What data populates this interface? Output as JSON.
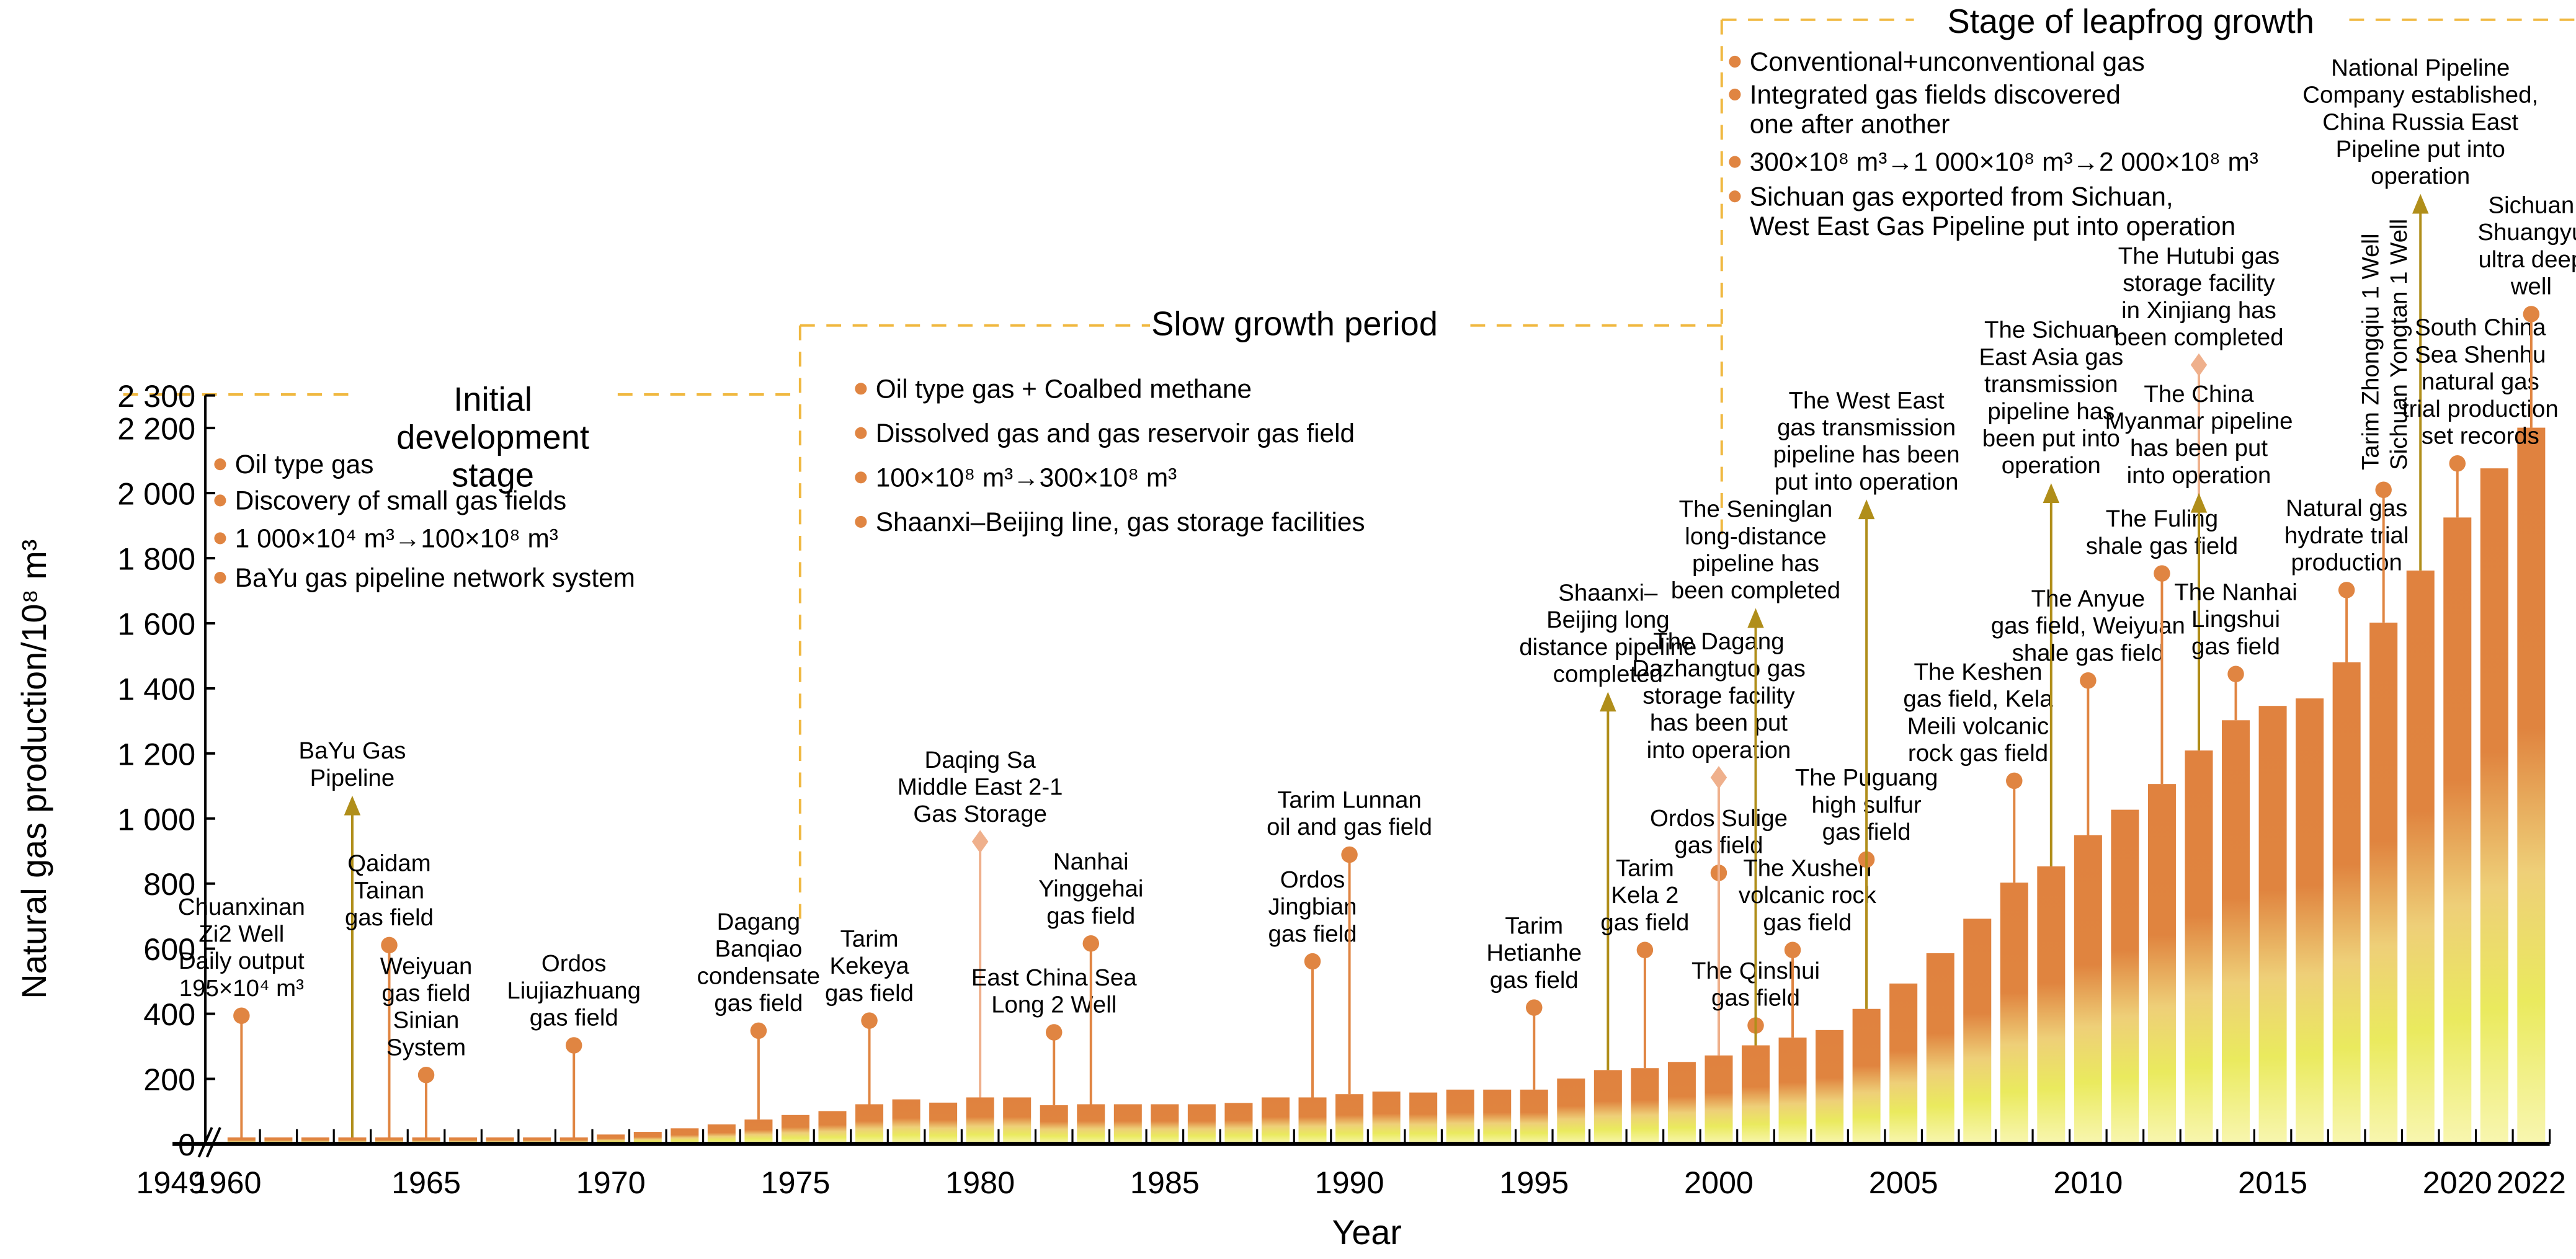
{
  "chart_data": {
    "type": "bar",
    "xlabel": "Year",
    "ylabel": "Natural gas production/10⁸ m³",
    "ylim": [
      0,
      2300
    ],
    "yticks": [
      0,
      200,
      400,
      600,
      800,
      1000,
      1200,
      1400,
      1600,
      1800,
      2000,
      2200,
      2300
    ],
    "ytick_labels": [
      "0",
      "200",
      "400",
      "600",
      "800",
      "1 000",
      "1 200",
      "1 400",
      "1 600",
      "1 800",
      "2 000",
      "2 200",
      "2 300"
    ],
    "xtick_labels": [
      "1949",
      "1960",
      "1965",
      "1970",
      "1975",
      "1980",
      "1985",
      "1990",
      "1995",
      "2000",
      "2005",
      "2010",
      "2015",
      "2020",
      "2022"
    ],
    "axis_break": "between 1949 and 1960",
    "grid": false,
    "colors": {
      "bar_top": "#e0823f",
      "bar_bottom": "#eaea5e",
      "dot": "#e08542",
      "diamond": "#efb08c",
      "arrow": "#b08e1a",
      "stage_line": "#f0b840"
    },
    "years": [
      1949,
      1960,
      1961,
      1962,
      1963,
      1964,
      1965,
      1966,
      1967,
      1968,
      1969,
      1970,
      1971,
      1972,
      1973,
      1974,
      1975,
      1976,
      1977,
      1978,
      1979,
      1980,
      1981,
      1982,
      1983,
      1984,
      1985,
      1986,
      1987,
      1988,
      1989,
      1990,
      1991,
      1992,
      1993,
      1994,
      1995,
      1996,
      1997,
      1998,
      1999,
      2000,
      2001,
      2002,
      2003,
      2004,
      2005,
      2006,
      2007,
      2008,
      2009,
      2010,
      2011,
      2012,
      2013,
      2014,
      2015,
      2016,
      2017,
      2018,
      2019,
      2020,
      2021,
      2022
    ],
    "values": [
      0.1,
      20,
      20,
      20,
      20,
      20,
      20,
      20,
      20,
      20,
      20,
      29,
      37,
      48,
      60,
      75,
      89,
      101,
      122,
      137,
      127,
      143,
      143,
      119,
      122,
      122,
      122,
      122,
      126,
      143,
      143,
      153,
      161,
      158,
      167,
      167,
      167,
      201,
      227,
      233,
      252,
      272,
      303,
      327,
      350,
      415,
      493,
      586,
      692,
      803,
      853,
      949,
      1027,
      1106,
      1209,
      1302,
      1346,
      1369,
      1480,
      1602,
      1762,
      1925,
      2076,
      2201
    ],
    "annotations": [
      {
        "year": 1960,
        "marker": "dot",
        "value": 394,
        "label": [
          "Chuanxinan",
          "Zi2 Well",
          "Daily output",
          "195×10⁴ m³"
        ]
      },
      {
        "year": 1963,
        "marker": "arrow",
        "value": 1040,
        "label": [
          "BaYu Gas",
          "Pipeline"
        ]
      },
      {
        "year": 1964,
        "marker": "dot",
        "value": 611,
        "label": [
          "Qaidam",
          "Tainan",
          "gas field"
        ]
      },
      {
        "year": 1965,
        "marker": "dot",
        "value": 212,
        "label": [
          "Weiyuan",
          "gas field",
          "Sinian",
          "System"
        ]
      },
      {
        "year": 1969,
        "marker": "dot",
        "value": 303,
        "label": [
          "Ordos",
          "Liujiazhuang",
          "gas field"
        ]
      },
      {
        "year": 1974,
        "marker": "dot",
        "value": 348,
        "label": [
          "Dagang",
          "Banqiao",
          "condensate",
          "gas field"
        ]
      },
      {
        "year": 1977,
        "marker": "dot",
        "value": 379,
        "label": [
          "Tarim",
          "Kekeya",
          "gas field"
        ]
      },
      {
        "year": 1980,
        "marker": "diamond",
        "value": 929,
        "label": [
          "Daqing Sa",
          "Middle East 2-1",
          "Gas Storage"
        ]
      },
      {
        "year": 1982,
        "marker": "dot",
        "value": 343,
        "label": [
          "East China Sea",
          "Long 2 Well"
        ]
      },
      {
        "year": 1983,
        "marker": "dot",
        "value": 616,
        "label": [
          "Nanhai",
          "Yinggehai",
          "gas field"
        ]
      },
      {
        "year": 1989,
        "marker": "dot",
        "value": 561,
        "label": [
          "Ordos",
          "Jingbian",
          "gas field"
        ]
      },
      {
        "year": 1990,
        "marker": "dot",
        "value": 889,
        "label": [
          "Tarim Lunnan",
          "oil and gas field"
        ]
      },
      {
        "year": 1995,
        "marker": "dot",
        "value": 419,
        "label": [
          "Tarim",
          "Hetianhe",
          "gas field"
        ]
      },
      {
        "year": 1997,
        "marker": "arrow",
        "value": 1359,
        "label": [
          "Shaanxi–",
          "Beijing long",
          "distance pipeline",
          "completed"
        ]
      },
      {
        "year": 1998,
        "marker": "dot",
        "value": 596,
        "label": [
          "Tarim",
          "Kela 2",
          "gas field"
        ]
      },
      {
        "year": 2000,
        "marker": "dot",
        "value": 833,
        "label": [
          "Ordos Sulige",
          "gas field"
        ]
      },
      {
        "year": 2000,
        "marker": "diamond",
        "value": 1126,
        "label": [
          "The Dagang",
          "Dazhangtuo gas",
          "storage facility",
          "has been put",
          "into operation"
        ]
      },
      {
        "year": 2001,
        "marker": "dot",
        "value": 364,
        "label": [
          "The Qinshui",
          "gas field"
        ]
      },
      {
        "year": 2001,
        "marker": "arrow",
        "value": 1616,
        "label": [
          "The Seninglan",
          "long-distance",
          "pipeline has",
          "been completed"
        ]
      },
      {
        "year": 2002,
        "marker": "dot",
        "value": 596,
        "label": [
          "The Xushen",
          "volcanic rock",
          "gas field"
        ]
      },
      {
        "year": 2004,
        "marker": "dot",
        "value": 874,
        "label": [
          "The Puguang",
          "high sulfur",
          "gas field"
        ]
      },
      {
        "year": 2004,
        "marker": "arrow",
        "value": 1950,
        "label": [
          "The West East",
          "gas transmission",
          "pipeline has been",
          "put into operation"
        ]
      },
      {
        "year": 2008,
        "marker": "dot",
        "value": 1116,
        "label": [
          "The Keshen",
          "gas field, Kela",
          "Meili volcanic",
          "rock gas field"
        ]
      },
      {
        "year": 2009,
        "marker": "arrow",
        "value": 2000,
        "label": [
          "The Sichuan",
          "East Asia gas",
          "transmission",
          "pipeline has",
          "been put into",
          "operation"
        ]
      },
      {
        "year": 2010,
        "marker": "dot",
        "value": 1424,
        "label": [
          "The Anyue",
          "gas field, Weiyuan",
          "shale gas field"
        ]
      },
      {
        "year": 2012,
        "marker": "dot",
        "value": 1753,
        "label": [
          "The Fuling",
          "shale gas field"
        ]
      },
      {
        "year": 2013,
        "marker": "diamond",
        "value": 2394,
        "label": [
          "The Hutubi gas",
          "storage facility",
          "in Xinjiang has",
          "been completed"
        ]
      },
      {
        "year": 2013,
        "marker": "arrow",
        "value": 1970,
        "label": [
          "The China",
          "Myanmar pipeline",
          "has been put",
          "into operation"
        ]
      },
      {
        "year": 2014,
        "marker": "dot",
        "value": 1444,
        "label": [
          "The Nanhai",
          "Lingshui",
          "gas field"
        ]
      },
      {
        "year": 2017,
        "marker": "dot",
        "value": 1702,
        "label": [
          "Natural gas",
          "hydrate trial",
          "production"
        ]
      },
      {
        "year": 2018,
        "marker": "dot",
        "value": 2010,
        "label": [
          "Tarim Zhongqiu 1 Well",
          "Sichuan Yongtan 1 Well"
        ],
        "vertical": true
      },
      {
        "year": 2019,
        "marker": "arrow",
        "value": 2889,
        "label": [
          "National Pipeline",
          "Company established,",
          "China Russia East",
          "Pipeline put into",
          "operation"
        ]
      },
      {
        "year": 2020,
        "marker": "dot",
        "value": 2091,
        "label": [
          "South China",
          "Sea Shenhu",
          "natural gas",
          "trial production",
          "set records"
        ]
      },
      {
        "year": 2022,
        "marker": "dot",
        "value": 2550,
        "label": [
          "Sichuan",
          "Shuangyu",
          "ultra deep",
          "well"
        ]
      }
    ],
    "stages": [
      {
        "title": [
          "Initial",
          "development",
          "stage"
        ],
        "bullets": [
          [
            "Oil type gas"
          ],
          [
            "Discovery of small gas fields"
          ],
          [
            "1 000×10⁴ m³→100×10⁸ m³"
          ],
          [
            "BaYu gas pipeline network system"
          ]
        ]
      },
      {
        "title": [
          "Slow growth period"
        ],
        "bullets": [
          [
            "Oil type gas + Coalbed methane"
          ],
          [
            "Dissolved gas and gas reservoir gas field"
          ],
          [
            "100×10⁸ m³→300×10⁸ m³"
          ],
          [
            "Shaanxi–Beijing line, gas storage facilities"
          ]
        ]
      },
      {
        "title": [
          "Stage of leapfrog growth"
        ],
        "bullets": [
          [
            "Conventional+unconventional gas"
          ],
          [
            "Integrated gas fields discovered",
            "one after another"
          ],
          [
            "300×10⁸ m³→1 000×10⁸ m³→2 000×10⁸ m³"
          ],
          [
            "Sichuan gas exported from Sichuan,",
            "West East Gas Pipeline put into operation"
          ]
        ]
      }
    ]
  }
}
